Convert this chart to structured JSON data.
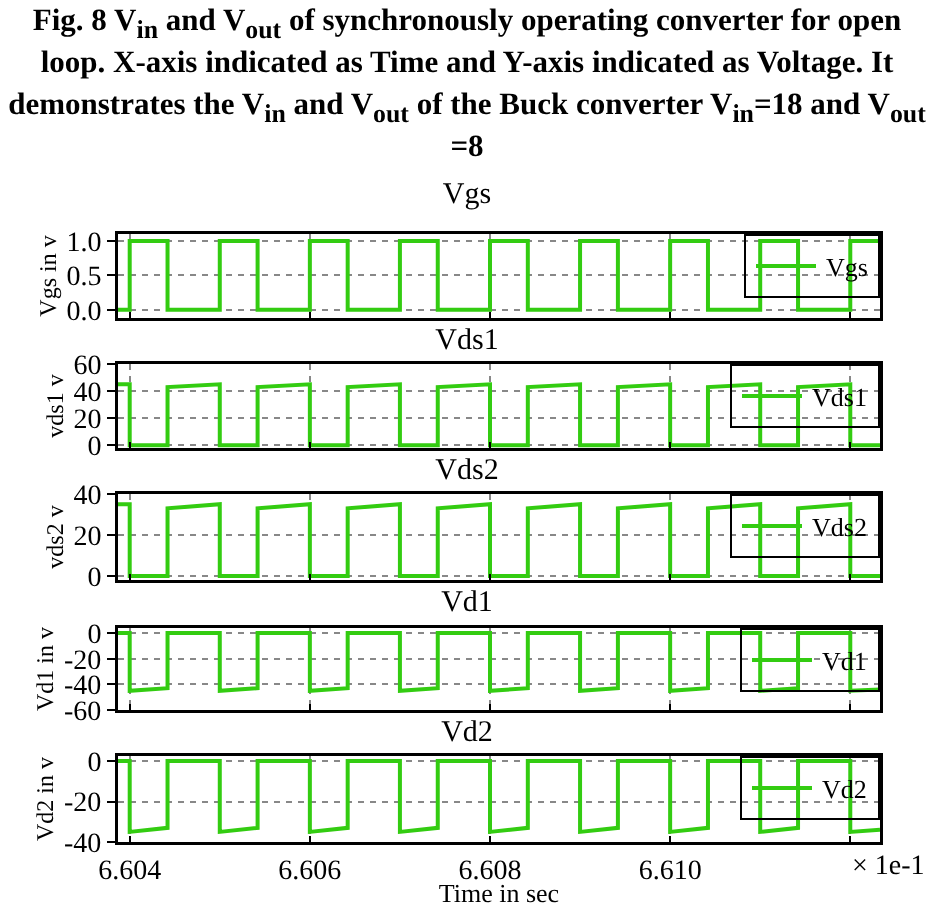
{
  "chart_data": [
    {
      "type": "line",
      "title": "Fig. 8 V$_{in}$ and V$_{out}$ of synchronously operating converter for open loop. X-axis indicated as Time and Y-axis indicated as Voltage. It demonstrates the V$_{in}$ and V$_{out}$ of the Buck converter V$_{in}$=18 and V$_{out}$ =8",
      "subtitle": "Vgs",
      "ylabel": "Vgs in v",
      "x": [
        6.60387,
        6.604,
        6.604,
        6.60442,
        6.60442,
        6.605,
        6.605,
        6.60542,
        6.60542,
        6.606,
        6.606,
        6.60642,
        6.60642,
        6.607,
        6.607,
        6.60742,
        6.60742,
        6.608,
        6.608,
        6.60842,
        6.60842,
        6.609,
        6.609,
        6.60942,
        6.60942,
        6.61,
        6.61,
        6.61042,
        6.61042,
        6.611,
        6.611,
        6.61142,
        6.61142,
        6.612,
        6.612,
        6.61233
      ],
      "series": [
        {
          "name": "Vgs",
          "color": "#33cc11",
          "values": [
            0,
            0,
            1,
            1,
            0,
            0,
            1,
            1,
            0,
            0,
            1,
            1,
            0,
            0,
            1,
            1,
            0,
            0,
            1,
            1,
            0,
            0,
            1,
            1,
            0,
            0,
            1,
            1,
            0,
            0,
            1,
            1,
            0,
            0,
            1,
            1
          ]
        }
      ],
      "xlim": [
        6.60387,
        6.61233
      ],
      "xticks": [
        6.604,
        6.606,
        6.608,
        6.61,
        6.612
      ],
      "ylim": [
        -0.12,
        1.1
      ],
      "yticks": [
        {
          "value": 0,
          "label": "0.0"
        },
        {
          "value": 0.5,
          "label": "0.5"
        },
        {
          "value": 1,
          "label": "1.0"
        }
      ],
      "grid": true,
      "legend": "top right",
      "tick_labels": "y"
    },
    {
      "type": "line",
      "title": "Vds1",
      "ylabel": "vds1 v",
      "x": [
        6.60387,
        6.604,
        6.604,
        6.60442,
        6.60442,
        6.605,
        6.605,
        6.60542,
        6.60542,
        6.606,
        6.606,
        6.60642,
        6.60642,
        6.607,
        6.607,
        6.60742,
        6.60742,
        6.608,
        6.608,
        6.60842,
        6.60842,
        6.609,
        6.609,
        6.60942,
        6.60942,
        6.61,
        6.61,
        6.61042,
        6.61042,
        6.611,
        6.611,
        6.61142,
        6.61142,
        6.612,
        6.612,
        6.61233
      ],
      "series": [
        {
          "name": "Vds1",
          "color": "#33cc11",
          "values": [
            45,
            45,
            0,
            0,
            43,
            45,
            0,
            0,
            43,
            45,
            0,
            0,
            43,
            45,
            0,
            0,
            43,
            45,
            0,
            0,
            43,
            45,
            0,
            0,
            43,
            45,
            0,
            0,
            43,
            45,
            0,
            0,
            43,
            45,
            0,
            0
          ]
        }
      ],
      "xlim": [
        6.60387,
        6.61233
      ],
      "xticks": [
        6.604,
        6.606,
        6.608,
        6.61,
        6.612
      ],
      "ylim": [
        -2,
        60
      ],
      "yticks": [
        0,
        20,
        40,
        60
      ],
      "grid": true,
      "legend": "top right",
      "tick_labels": "y"
    },
    {
      "type": "line",
      "title": "Vds2",
      "ylabel": "vds2 v",
      "x": [
        6.60387,
        6.604,
        6.604,
        6.60442,
        6.60442,
        6.605,
        6.605,
        6.60542,
        6.60542,
        6.606,
        6.606,
        6.60642,
        6.60642,
        6.607,
        6.607,
        6.60742,
        6.60742,
        6.608,
        6.608,
        6.60842,
        6.60842,
        6.609,
        6.609,
        6.60942,
        6.60942,
        6.61,
        6.61,
        6.61042,
        6.61042,
        6.611,
        6.611,
        6.61142,
        6.61142,
        6.612,
        6.612,
        6.61233
      ],
      "series": [
        {
          "name": "Vds2",
          "color": "#33cc11",
          "values": [
            35,
            35,
            0,
            0,
            33,
            35,
            0,
            0,
            33,
            35,
            0,
            0,
            33,
            35,
            0,
            0,
            33,
            35,
            0,
            0,
            33,
            35,
            0,
            0,
            33,
            35,
            0,
            0,
            33,
            35,
            0,
            0,
            33,
            35,
            0,
            0
          ]
        }
      ],
      "xlim": [
        6.60387,
        6.61233
      ],
      "xticks": [
        6.604,
        6.606,
        6.608,
        6.61,
        6.612
      ],
      "ylim": [
        -2,
        40
      ],
      "yticks": [
        0,
        20,
        40
      ],
      "grid": true,
      "legend": "top right",
      "tick_labels": "y"
    },
    {
      "type": "line",
      "title": "Vd1",
      "ylabel": "Vd1 in v",
      "x": [
        6.60387,
        6.604,
        6.604,
        6.60442,
        6.60442,
        6.605,
        6.605,
        6.60542,
        6.60542,
        6.606,
        6.606,
        6.60642,
        6.60642,
        6.607,
        6.607,
        6.60742,
        6.60742,
        6.608,
        6.608,
        6.60842,
        6.60842,
        6.609,
        6.609,
        6.60942,
        6.60942,
        6.61,
        6.61,
        6.61042,
        6.61042,
        6.611,
        6.611,
        6.61142,
        6.61142,
        6.612,
        6.612,
        6.61233
      ],
      "series": [
        {
          "name": "Vd1",
          "color": "#33cc11",
          "values": [
            0,
            0,
            -45,
            -43,
            0,
            0,
            -45,
            -43,
            0,
            0,
            -45,
            -43,
            0,
            0,
            -45,
            -43,
            0,
            0,
            -45,
            -43,
            0,
            0,
            -45,
            -43,
            0,
            0,
            -45,
            -43,
            0,
            0,
            -45,
            -43,
            0,
            0,
            -45,
            -44
          ]
        }
      ],
      "xlim": [
        6.60387,
        6.61233
      ],
      "xticks": [
        6.604,
        6.606,
        6.608,
        6.61,
        6.612
      ],
      "ylim": [
        -60,
        4
      ],
      "yticks": [
        -60,
        -40,
        -20,
        0
      ],
      "grid": true,
      "legend": "top right",
      "tick_labels": "y"
    },
    {
      "type": "line",
      "title": "Vd2",
      "ylabel": "Vd2 in v",
      "xlabel": "Time in sec",
      "annotations": [
        "× 1e-1"
      ],
      "x": [
        6.60387,
        6.604,
        6.604,
        6.60442,
        6.60442,
        6.605,
        6.605,
        6.60542,
        6.60542,
        6.606,
        6.606,
        6.60642,
        6.60642,
        6.607,
        6.607,
        6.60742,
        6.60742,
        6.608,
        6.608,
        6.60842,
        6.60842,
        6.609,
        6.609,
        6.60942,
        6.60942,
        6.61,
        6.61,
        6.61042,
        6.61042,
        6.611,
        6.611,
        6.61142,
        6.61142,
        6.612,
        6.612,
        6.61233
      ],
      "series": [
        {
          "name": "Vd2",
          "color": "#33cc11",
          "values": [
            0,
            0,
            -35,
            -33,
            0,
            0,
            -35,
            -33,
            0,
            0,
            -35,
            -33,
            0,
            0,
            -35,
            -33,
            0,
            0,
            -35,
            -33,
            0,
            0,
            -35,
            -33,
            0,
            0,
            -35,
            -33,
            0,
            0,
            -35,
            -33,
            0,
            0,
            -35,
            -34
          ]
        }
      ],
      "xlim": [
        6.60387,
        6.61233
      ],
      "xticks": [
        6.604,
        6.606,
        6.608,
        {
          "value": 6.61,
          "label": "6.610"
        },
        {
          "value": 6.612,
          "label": null
        }
      ],
      "ylim": [
        -40,
        2.5
      ],
      "yticks": [
        -40,
        -20,
        0
      ],
      "grid": true,
      "legend": "top right"
    }
  ]
}
